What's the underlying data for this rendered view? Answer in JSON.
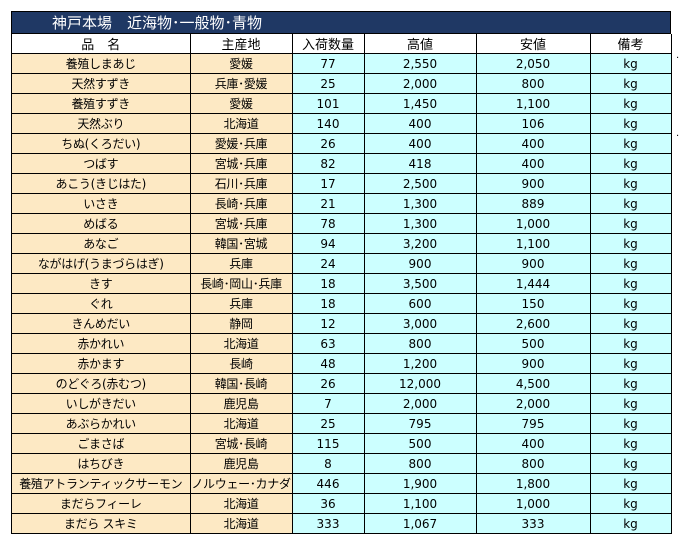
{
  "title": "神戸本場　近海物･一般物･青物",
  "columns": [
    "品　名",
    "主産地",
    "入荷数量",
    "高値",
    "安値",
    "備考"
  ],
  "rows": [
    {
      "name": "養殖しまあじ",
      "origin": "愛媛",
      "qty": "77",
      "high": "2,550",
      "low": "2,050",
      "note": "kg"
    },
    {
      "name": "天然すずき",
      "origin": "兵庫･愛媛",
      "qty": "25",
      "high": "2,000",
      "low": "800",
      "note": "kg"
    },
    {
      "name": "養殖すずき",
      "origin": "愛媛",
      "qty": "101",
      "high": "1,450",
      "low": "1,100",
      "note": "kg"
    },
    {
      "name": "天然ぶり",
      "origin": "北海道",
      "qty": "140",
      "high": "400",
      "low": "106",
      "note": "kg"
    },
    {
      "name": "ちぬ(くろだい)",
      "origin": "愛媛･兵庫",
      "qty": "26",
      "high": "400",
      "low": "400",
      "note": "kg"
    },
    {
      "name": "つばす",
      "origin": "宮城･兵庫",
      "qty": "82",
      "high": "418",
      "low": "400",
      "note": "kg"
    },
    {
      "name": "あこう(きじはた)",
      "origin": "石川･兵庫",
      "qty": "17",
      "high": "2,500",
      "low": "900",
      "note": "kg"
    },
    {
      "name": "いさき",
      "origin": "長崎･兵庫",
      "qty": "21",
      "high": "1,300",
      "low": "889",
      "note": "kg"
    },
    {
      "name": "めばる",
      "origin": "宮城･兵庫",
      "qty": "78",
      "high": "1,300",
      "low": "1,000",
      "note": "kg"
    },
    {
      "name": "あなご",
      "origin": "韓国･宮城",
      "qty": "94",
      "high": "3,200",
      "low": "1,100",
      "note": "kg"
    },
    {
      "name": "ながはげ(うまづらはぎ)",
      "origin": "兵庫",
      "qty": "24",
      "high": "900",
      "low": "900",
      "note": "kg"
    },
    {
      "name": "きす",
      "origin": "長崎･岡山･兵庫",
      "qty": "18",
      "high": "3,500",
      "low": "1,444",
      "note": "kg"
    },
    {
      "name": "ぐれ",
      "origin": "兵庫",
      "qty": "18",
      "high": "600",
      "low": "150",
      "note": "kg"
    },
    {
      "name": "きんめだい",
      "origin": "静岡",
      "qty": "12",
      "high": "3,000",
      "low": "2,600",
      "note": "kg"
    },
    {
      "name": "赤かれい",
      "origin": "北海道",
      "qty": "63",
      "high": "800",
      "low": "500",
      "note": "kg"
    },
    {
      "name": "赤かます",
      "origin": "長崎",
      "qty": "48",
      "high": "1,200",
      "low": "900",
      "note": "kg"
    },
    {
      "name": "のどぐろ(赤むつ)",
      "origin": "韓国･長崎",
      "qty": "26",
      "high": "12,000",
      "low": "4,500",
      "note": "kg"
    },
    {
      "name": "いしがきだい",
      "origin": "鹿児島",
      "qty": "7",
      "high": "2,000",
      "low": "2,000",
      "note": "kg"
    },
    {
      "name": "あぶらかれい",
      "origin": "北海道",
      "qty": "25",
      "high": "795",
      "low": "795",
      "note": "kg"
    },
    {
      "name": "ごまさば",
      "origin": "宮城･長崎",
      "qty": "115",
      "high": "500",
      "low": "400",
      "note": "kg"
    },
    {
      "name": "はちびき",
      "origin": "鹿児島",
      "qty": "8",
      "high": "800",
      "low": "800",
      "note": "kg"
    },
    {
      "name": "養殖アトランティックサーモン",
      "origin": "ノルウェー･カナダ",
      "qty": "446",
      "high": "1,900",
      "low": "1,800",
      "note": "kg"
    },
    {
      "name": "まだらフィーレ",
      "origin": "北海道",
      "qty": "36",
      "high": "1,100",
      "low": "1,000",
      "note": "kg"
    },
    {
      "name": "まだら スキミ",
      "origin": "北海道",
      "qty": "333",
      "high": "1,067",
      "low": "333",
      "note": "kg"
    }
  ],
  "stray_marks": [
    ".",
    "."
  ]
}
